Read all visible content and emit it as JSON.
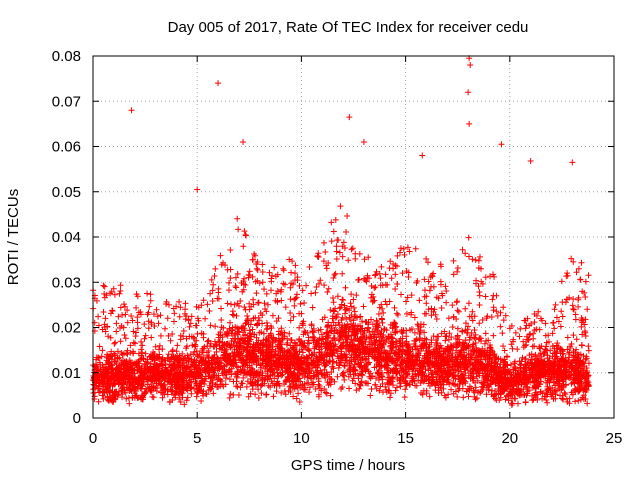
{
  "chart_data": {
    "type": "scatter",
    "title": "Day 005 of 2017, Rate Of TEC Index for receiver cedu",
    "xlabel": "GPS time / hours",
    "ylabel": "ROTI / TECUs",
    "xlim": [
      0,
      25
    ],
    "ylim": [
      0,
      0.08
    ],
    "x_ticks": [
      0,
      5,
      10,
      15,
      20,
      25
    ],
    "x_tick_labels": [
      "0",
      "5",
      "10",
      "15",
      "20",
      "25"
    ],
    "y_ticks": [
      0,
      0.01,
      0.02,
      0.03,
      0.04,
      0.05,
      0.06,
      0.07,
      0.08
    ],
    "y_tick_labels": [
      "0",
      "0.01",
      "0.02",
      "0.03",
      "0.04",
      "0.05",
      "0.06",
      "0.07",
      "0.08"
    ],
    "grid": true,
    "marker": "+",
    "color": "#ff0000",
    "series": [
      {
        "name": "ROTI",
        "notable_points": [
          {
            "x": 1.85,
            "y": 0.068
          },
          {
            "x": 6.0,
            "y": 0.074
          },
          {
            "x": 7.2,
            "y": 0.061
          },
          {
            "x": 12.3,
            "y": 0.0665
          },
          {
            "x": 18.05,
            "y": 0.0795
          },
          {
            "x": 18.1,
            "y": 0.078
          },
          {
            "x": 18.0,
            "y": 0.072
          },
          {
            "x": 18.05,
            "y": 0.065
          },
          {
            "x": 19.6,
            "y": 0.0605
          },
          {
            "x": 21.0,
            "y": 0.0568
          },
          {
            "x": 23.0,
            "y": 0.0565
          },
          {
            "x": 5.0,
            "y": 0.0505
          },
          {
            "x": 13.0,
            "y": 0.061
          },
          {
            "x": 15.8,
            "y": 0.058
          }
        ],
        "envelope_hours": [
          0,
          1,
          2,
          3,
          4,
          5,
          6,
          7,
          8,
          9,
          10,
          11,
          12,
          13,
          14,
          15,
          16,
          17,
          18,
          19,
          20,
          21,
          22,
          23,
          23.8
        ],
        "envelope_median": [
          0.008,
          0.009,
          0.009,
          0.009,
          0.009,
          0.009,
          0.012,
          0.014,
          0.013,
          0.012,
          0.011,
          0.013,
          0.016,
          0.014,
          0.013,
          0.012,
          0.012,
          0.011,
          0.012,
          0.011,
          0.007,
          0.009,
          0.01,
          0.01,
          0.009
        ],
        "envelope_upper": [
          0.03,
          0.03,
          0.028,
          0.028,
          0.026,
          0.025,
          0.035,
          0.045,
          0.035,
          0.036,
          0.034,
          0.04,
          0.048,
          0.038,
          0.035,
          0.04,
          0.036,
          0.034,
          0.04,
          0.035,
          0.02,
          0.024,
          0.025,
          0.036,
          0.035
        ]
      }
    ]
  }
}
